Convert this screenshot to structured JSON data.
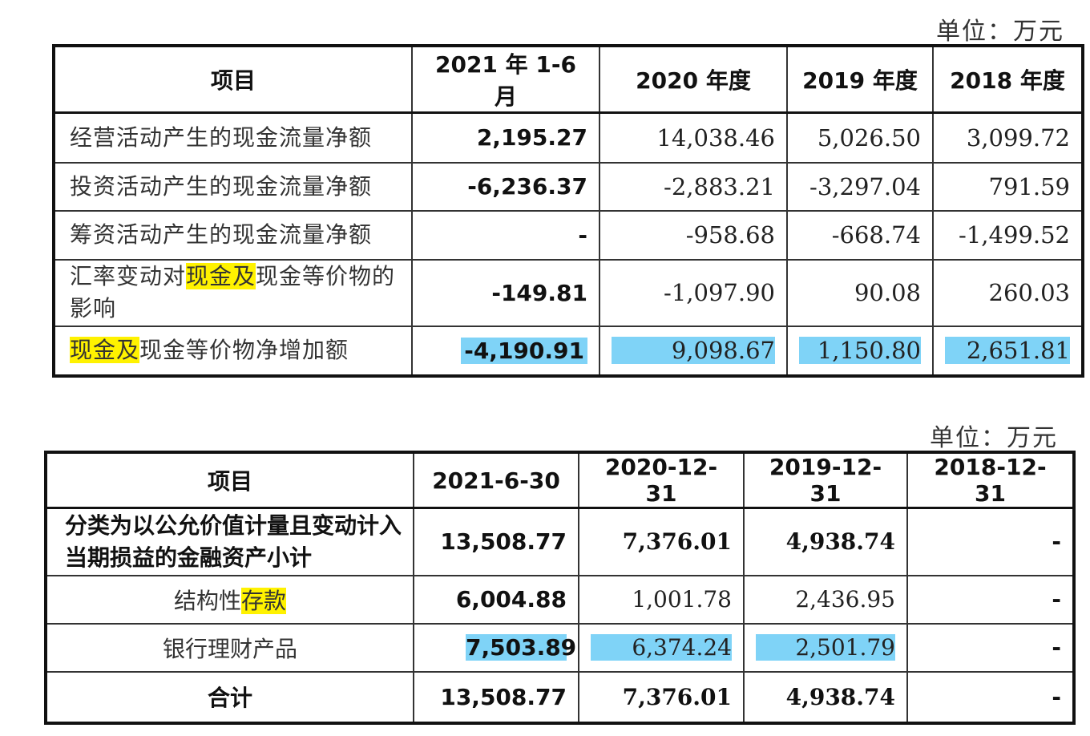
{
  "unit_label": "单位：万元",
  "table1": {
    "headers": [
      "项目",
      "2021 年 1-6 月",
      "2020 年度",
      "2019 年度",
      "2018 年度"
    ],
    "rows": [
      {
        "label": "经营活动产生的现金流量净额",
        "values": [
          "2,195.27",
          "14,038.46",
          "5,026.50",
          "3,099.72"
        ]
      },
      {
        "label": "投资活动产生的现金流量净额",
        "values": [
          "-6,236.37",
          "-2,883.21",
          "-3,297.04",
          "791.59"
        ]
      },
      {
        "label": "筹资活动产生的现金流量净额",
        "values": [
          "-",
          "-958.68",
          "-668.74",
          "-1,499.52"
        ]
      },
      {
        "label_pre": "汇率变动对",
        "label_hl": "现金及",
        "label_post": "现金等价物的影响",
        "values": [
          "-149.81",
          "-1,097.90",
          "90.08",
          "260.03"
        ]
      },
      {
        "label_hl": "现金及",
        "label_post": "现金等价物净增加额",
        "values": [
          "-4,190.91",
          "9,098.67",
          "1,150.80",
          "2,651.81"
        ]
      }
    ]
  },
  "table2": {
    "headers": [
      "项目",
      "2021-6-30",
      "2020-12-31",
      "2019-12-31",
      "2018-12-31"
    ],
    "rows": [
      {
        "label": "分类为以公允价值计量且变动计入当期损益的金融资产小计",
        "values": [
          "13,508.77",
          "7,376.01",
          "4,938.74",
          "-"
        ]
      },
      {
        "label_pre": "结构性",
        "label_hl": "存款",
        "values": [
          "6,004.88",
          "1,001.78",
          "2,436.95",
          "-"
        ]
      },
      {
        "label": "银行理财产品",
        "values": [
          "7,503.89",
          "6,374.24",
          "2,501.79",
          "-"
        ]
      },
      {
        "label": "合计",
        "values": [
          "13,508.77",
          "7,376.01",
          "4,938.74",
          "-"
        ]
      }
    ]
  },
  "colors": {
    "highlight_yellow": "#fff200",
    "highlight_blue": "#7fd3f7"
  }
}
